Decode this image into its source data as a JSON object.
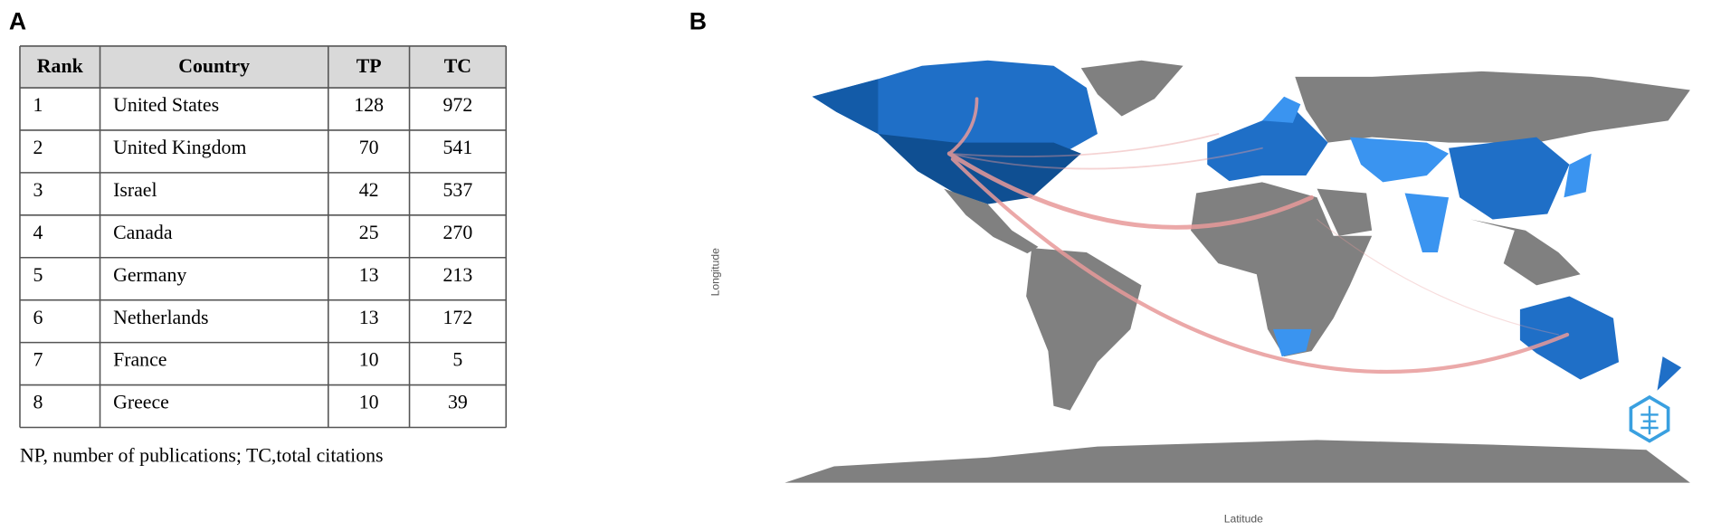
{
  "panels": {
    "a": "A",
    "b": "B"
  },
  "table": {
    "header": [
      "Rank",
      "Country",
      "TP",
      "TC"
    ],
    "rows": [
      [
        1,
        "United States",
        128,
        972
      ],
      [
        2,
        "United Kingdom",
        70,
        541
      ],
      [
        3,
        "Israel",
        42,
        537
      ],
      [
        4,
        "Canada",
        25,
        270
      ],
      [
        5,
        "Germany",
        13,
        213
      ],
      [
        6,
        "Netherlands",
        13,
        172
      ],
      [
        7,
        "France",
        10,
        5
      ],
      [
        8,
        "Greece",
        10,
        39
      ]
    ]
  },
  "footnote": "NP, number of publications; TC,total citations",
  "map": {
    "y_axis_label": "Longitude",
    "x_axis_label": "Latitude"
  }
}
